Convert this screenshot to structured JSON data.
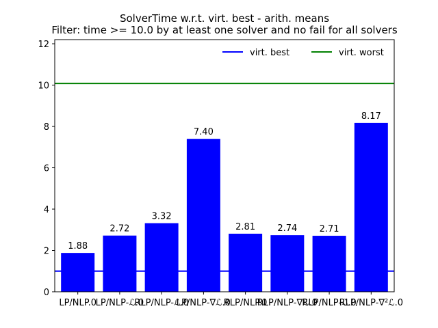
{
  "chart_data": {
    "type": "bar",
    "title_line1": "SolverTime w.r.t. virt. best - arith. means",
    "title_line2": "Filter: time >= 10.0 by at least one solver and no fail for all solvers",
    "categories": [
      "LP/NLP.0",
      "LP/NLP-ℒ.0",
      "RLP/NLP-ℒ.0",
      "LP/NLP-∇ℒ.0",
      "RLP/NLP.0",
      "RLP/NLP-∇ℒ.0",
      "RLP/NLP-ℒ.0",
      "RLP/NLP-∇²ℒ.0"
    ],
    "values": [
      1.88,
      2.72,
      3.32,
      7.4,
      2.81,
      2.74,
      2.71,
      8.17
    ],
    "value_labels": [
      "1.88",
      "2.72",
      "3.32",
      "7.40",
      "2.81",
      "2.74",
      "2.71",
      "8.17"
    ],
    "bar_color": "#0000ff",
    "ylim": [
      0,
      12.2
    ],
    "yticks": [
      0,
      2,
      4,
      6,
      8,
      10,
      12
    ],
    "ytick_labels": [
      "0",
      "2",
      "4",
      "6",
      "8",
      "10",
      "12"
    ],
    "reference_lines": [
      {
        "name": "virt. best",
        "value": 1.0,
        "color": "#0000ff"
      },
      {
        "name": "virt. worst",
        "value": 10.08,
        "color": "#008000"
      }
    ],
    "legend_position": "top-right",
    "grid": false
  }
}
